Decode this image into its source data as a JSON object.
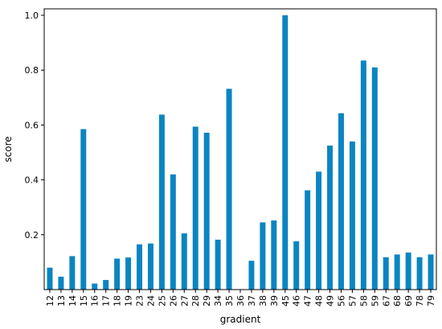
{
  "chart_data": {
    "type": "bar",
    "xlabel": "gradient",
    "ylabel": "score",
    "categories": [
      "12",
      "13",
      "14",
      "15",
      "16",
      "17",
      "18",
      "19",
      "23",
      "24",
      "25",
      "26",
      "27",
      "28",
      "29",
      "34",
      "35",
      "36",
      "37",
      "38",
      "39",
      "45",
      "46",
      "47",
      "48",
      "49",
      "56",
      "57",
      "58",
      "59",
      "67",
      "68",
      "69",
      "78",
      "79"
    ],
    "values": [
      0.08,
      0.047,
      0.122,
      0.585,
      0.022,
      0.035,
      0.113,
      0.117,
      0.165,
      0.168,
      0.638,
      0.42,
      0.205,
      0.594,
      0.572,
      0.182,
      0.732,
      0.0,
      0.105,
      0.245,
      0.252,
      1.0,
      0.176,
      0.362,
      0.43,
      0.525,
      0.643,
      0.54,
      0.835,
      0.81,
      0.118,
      0.128,
      0.135,
      0.118,
      0.128
    ],
    "yticks": [
      "0.2",
      "0.4",
      "0.6",
      "0.8",
      "1.0"
    ],
    "ylim": [
      0,
      1.0
    ],
    "grid": false,
    "bar_color": "#0a85c2"
  }
}
